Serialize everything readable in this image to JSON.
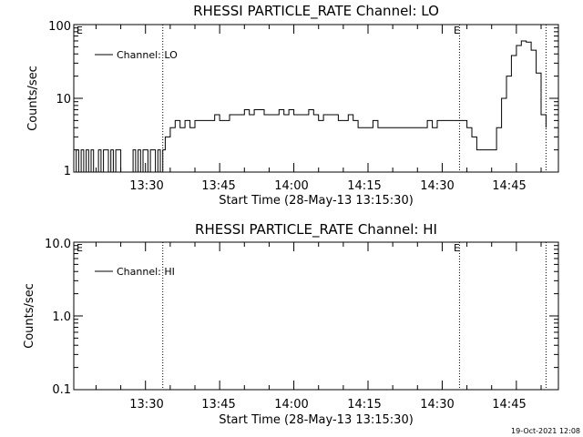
{
  "chart_data": [
    {
      "type": "line",
      "title": "RHESSI PARTICLE_RATE Channel: LO",
      "xlabel": "Start Time (28-May-13 13:15:30)",
      "ylabel": "Counts/sec",
      "yscale": "log",
      "ylim": [
        1,
        100
      ],
      "xlim": [
        "13:15:30",
        "14:53:30"
      ],
      "ytick_labels": [
        "100",
        "10",
        "1"
      ],
      "xtick_labels": [
        "13:30",
        "13:45",
        "14:00",
        "14:15",
        "14:30",
        "14:45"
      ],
      "legend": {
        "placement": "top-left",
        "entries": [
          "Channel: LO"
        ]
      },
      "event_markers": [
        {
          "time": "13:33:30",
          "label": "E"
        },
        {
          "time": "14:33:30",
          "label": "E"
        },
        {
          "time": "14:51:00",
          "label": ""
        }
      ],
      "series": [
        {
          "name": "Channel: LO",
          "x": [
            "13:15:30",
            "13:16:00",
            "13:16:30",
            "13:17:00",
            "13:17:30",
            "13:18:00",
            "13:18:30",
            "13:19:00",
            "13:19:30",
            "13:20:00",
            "13:20:30",
            "13:21:00",
            "13:21:30",
            "13:22:00",
            "13:22:30",
            "13:23:00",
            "13:23:30",
            "13:24:00",
            "13:24:30",
            "13:25:00",
            "13:25:30",
            "13:26:00",
            "13:26:30",
            "13:27:00",
            "13:27:30",
            "13:28:00",
            "13:28:30",
            "13:29:00",
            "13:29:30",
            "13:30:00",
            "13:30:30",
            "13:31:00",
            "13:31:30",
            "13:32:00",
            "13:32:30",
            "13:33:00",
            "13:33:30",
            "13:34:00",
            "13:34:30",
            "13:35:00",
            "13:36:00",
            "13:37:00",
            "13:38:00",
            "13:39:00",
            "13:40:00",
            "13:41:00",
            "13:42:00",
            "13:43:00",
            "13:44:00",
            "13:45:00",
            "13:46:00",
            "13:47:00",
            "13:48:00",
            "13:49:00",
            "13:50:00",
            "13:51:00",
            "13:52:00",
            "13:53:00",
            "13:54:00",
            "13:55:00",
            "13:56:00",
            "13:57:00",
            "13:58:00",
            "13:59:00",
            "14:00:00",
            "14:01:00",
            "14:02:00",
            "14:03:00",
            "14:04:00",
            "14:05:00",
            "14:06:00",
            "14:07:00",
            "14:08:00",
            "14:09:00",
            "14:10:00",
            "14:11:00",
            "14:12:00",
            "14:13:00",
            "14:14:00",
            "14:15:00",
            "14:16:00",
            "14:17:00",
            "14:18:00",
            "14:19:00",
            "14:20:00",
            "14:21:00",
            "14:22:00",
            "14:23:00",
            "14:24:00",
            "14:25:00",
            "14:26:00",
            "14:27:00",
            "14:28:00",
            "14:29:00",
            "14:30:00",
            "14:31:00",
            "14:32:00",
            "14:33:00",
            "14:34:00",
            "14:35:00",
            "14:36:00",
            "14:37:00",
            "14:38:00",
            "14:39:00",
            "14:40:00",
            "14:41:00",
            "14:42:00",
            "14:43:00",
            "14:44:00",
            "14:45:00",
            "14:46:00",
            "14:47:00",
            "14:48:00",
            "14:49:00",
            "14:50:00",
            "14:51:00"
          ],
          "y": [
            1,
            2,
            1,
            2,
            1,
            2,
            1,
            2,
            1,
            1,
            2,
            1,
            2,
            2,
            1,
            2,
            1,
            2,
            2,
            1,
            1,
            1,
            1,
            1,
            2,
            1,
            2,
            1,
            2,
            2,
            1,
            2,
            2,
            1,
            2,
            1,
            2,
            3,
            3,
            4,
            5,
            4,
            5,
            4,
            5,
            5,
            5,
            5,
            6,
            5,
            5,
            6,
            6,
            6,
            7,
            6,
            7,
            7,
            6,
            6,
            6,
            7,
            6,
            7,
            6,
            6,
            6,
            7,
            6,
            5,
            6,
            6,
            6,
            5,
            5,
            6,
            5,
            4,
            4,
            4,
            5,
            4,
            4,
            4,
            4,
            4,
            4,
            4,
            4,
            4,
            4,
            5,
            4,
            5,
            5,
            5,
            5,
            5,
            5,
            4,
            3,
            2,
            2,
            2,
            2,
            4,
            10,
            20,
            38,
            52,
            60,
            58,
            45,
            22,
            6,
            4
          ]
        }
      ]
    },
    {
      "type": "line",
      "title": "RHESSI PARTICLE_RATE Channel: HI",
      "xlabel": "Start Time (28-May-13 13:15:30)",
      "ylabel": "Counts/sec",
      "yscale": "log",
      "ylim": [
        0.1,
        10
      ],
      "xlim": [
        "13:15:30",
        "14:53:30"
      ],
      "ytick_labels": [
        "10.0",
        "1.0",
        "0.1"
      ],
      "xtick_labels": [
        "13:30",
        "13:45",
        "14:00",
        "14:15",
        "14:30",
        "14:45"
      ],
      "legend": {
        "placement": "top-left",
        "entries": [
          "Channel: HI"
        ]
      },
      "event_markers": [
        {
          "time": "13:33:30",
          "label": "E"
        },
        {
          "time": "14:33:30",
          "label": "E"
        },
        {
          "time": "14:51:00",
          "label": ""
        }
      ],
      "series": [
        {
          "name": "Channel: HI",
          "x": [],
          "y": []
        }
      ]
    }
  ],
  "footer": {
    "timestamp": "19-Oct-2021 12:08"
  }
}
